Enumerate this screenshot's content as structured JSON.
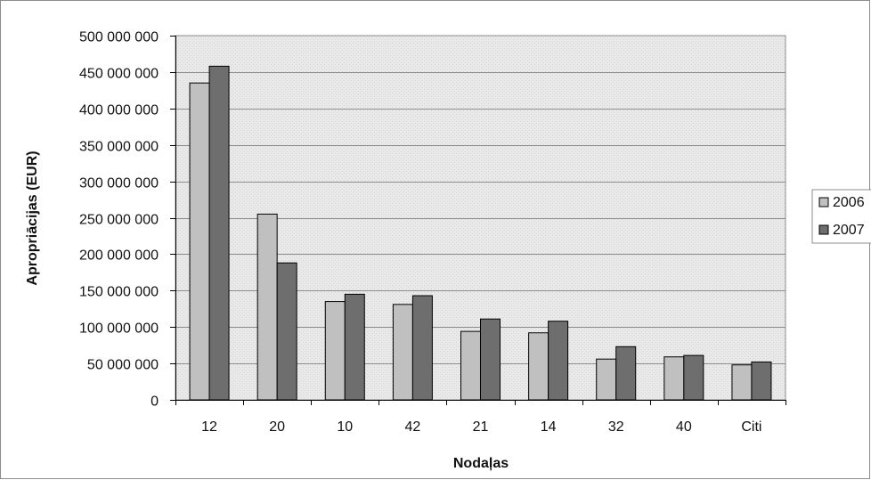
{
  "chart_data": {
    "type": "bar",
    "title": "",
    "xlabel": "Nodaļas",
    "ylabel": "Apropriācijas (EUR)",
    "ylim": [
      0,
      500000000
    ],
    "yticks": [
      0,
      50000000,
      100000000,
      150000000,
      200000000,
      250000000,
      300000000,
      350000000,
      400000000,
      450000000,
      500000000
    ],
    "ytick_labels": [
      "0",
      "50 000 000",
      "100 000 000",
      "150 000 000",
      "200 000 000",
      "250 000 000",
      "300 000 000",
      "350 000 000",
      "400 000 000",
      "450 000 000",
      "500 000 000"
    ],
    "categories": [
      "12",
      "20",
      "10",
      "42",
      "21",
      "14",
      "32",
      "40",
      "Citi"
    ],
    "series": [
      {
        "name": "2006",
        "color": "#c0c0c0",
        "values": [
          435000000,
          255000000,
          135000000,
          131000000,
          94000000,
          92000000,
          56000000,
          59000000,
          48000000
        ]
      },
      {
        "name": "2007",
        "color": "#6e6e6e",
        "values": [
          458000000,
          188000000,
          145000000,
          143000000,
          111000000,
          108000000,
          73000000,
          61000000,
          52000000
        ]
      }
    ],
    "grid": true,
    "legend_position": "right"
  }
}
